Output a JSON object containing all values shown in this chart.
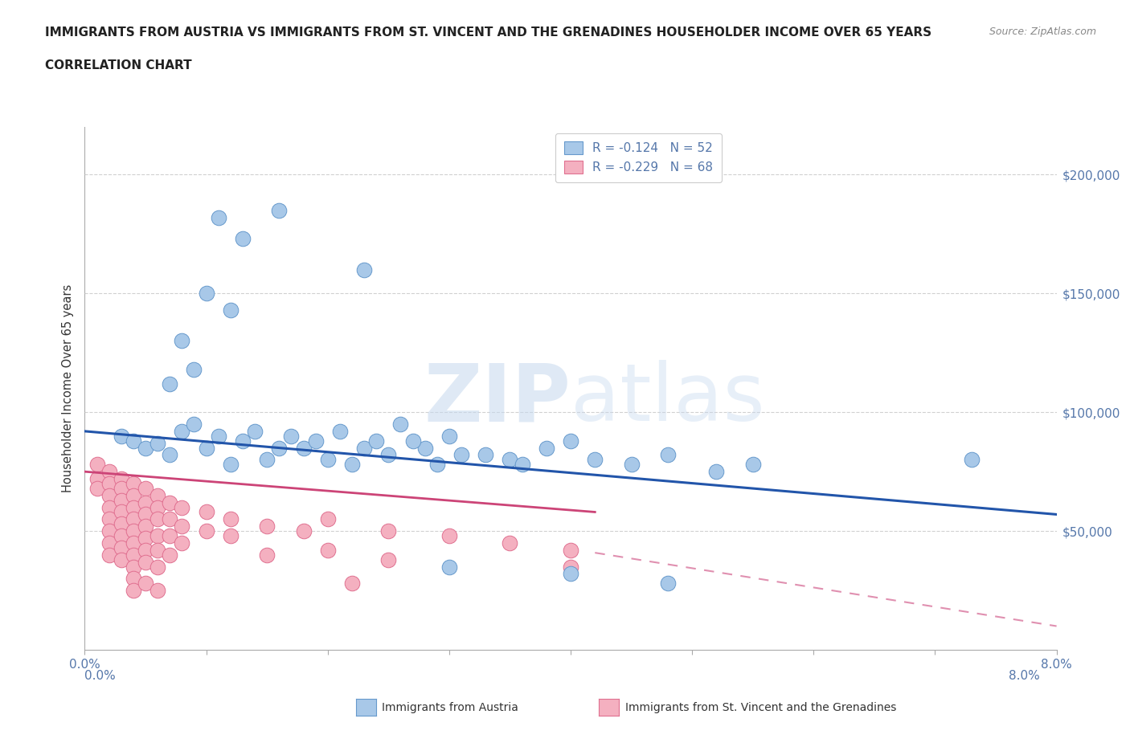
{
  "title_line1": "IMMIGRANTS FROM AUSTRIA VS IMMIGRANTS FROM ST. VINCENT AND THE GRENADINES HOUSEHOLDER INCOME OVER 65 YEARS",
  "title_line2": "CORRELATION CHART",
  "source_text": "Source: ZipAtlas.com",
  "ylabel": "Householder Income Over 65 years",
  "xlim": [
    0.0,
    0.08
  ],
  "ylim": [
    0,
    220000
  ],
  "ytick_positions": [
    50000,
    100000,
    150000,
    200000
  ],
  "ytick_labels": [
    "$50,000",
    "$100,000",
    "$150,000",
    "$200,000"
  ],
  "austria_color": "#a8c8e8",
  "austria_edge_color": "#6699cc",
  "svg_color": "#f4b0c0",
  "svg_edge_color": "#e07090",
  "austria_R": -0.124,
  "austria_N": 52,
  "svg_R": -0.229,
  "svg_N": 68,
  "legend_label_austria": "Immigrants from Austria",
  "legend_label_svg": "Immigrants from St. Vincent and the Grenadines",
  "austria_line_color": "#2255aa",
  "svg_line_solid_color": "#cc4477",
  "svg_line_dash_color": "#e090b0",
  "watermark_zip": "ZIP",
  "watermark_atlas": "atlas",
  "background_color": "#ffffff",
  "grid_color": "#cccccc",
  "spine_color": "#aaaaaa",
  "tick_color": "#5577aa",
  "title_color": "#222222",
  "source_color": "#888888"
}
